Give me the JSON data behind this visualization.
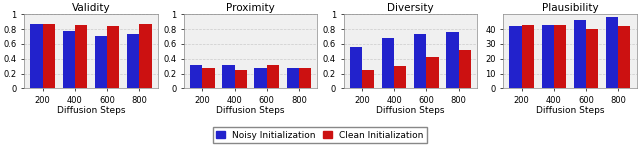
{
  "categories": [
    "200",
    "400",
    "600",
    "800"
  ],
  "subplots": [
    {
      "title": "Validity",
      "ylim": [
        0,
        1
      ],
      "yticks": [
        0,
        0.2,
        0.4,
        0.6,
        0.8,
        1
      ],
      "ytick_labels": [
        "0",
        "0.2",
        "0.4",
        "0.6",
        "0.8",
        "1"
      ],
      "blue": [
        0.87,
        0.78,
        0.71,
        0.73
      ],
      "red": [
        0.87,
        0.86,
        0.84,
        0.87
      ]
    },
    {
      "title": "Proximity",
      "ylim": [
        0,
        1
      ],
      "yticks": [
        0,
        0.2,
        0.4,
        0.6,
        0.8,
        1
      ],
      "ytick_labels": [
        "0",
        "0.2",
        "0.4",
        "0.6",
        "0.8",
        "1"
      ],
      "blue": [
        0.31,
        0.31,
        0.28,
        0.27
      ],
      "red": [
        0.27,
        0.25,
        0.31,
        0.27
      ]
    },
    {
      "title": "Diversity",
      "ylim": [
        0,
        1
      ],
      "yticks": [
        0,
        0.2,
        0.4,
        0.6,
        0.8,
        1
      ],
      "ytick_labels": [
        "0",
        "0.2",
        "0.4",
        "0.6",
        "0.8",
        "1"
      ],
      "blue": [
        0.56,
        0.68,
        0.74,
        0.76
      ],
      "red": [
        0.25,
        0.3,
        0.42,
        0.52
      ]
    },
    {
      "title": "Plausibility",
      "ylim": [
        0,
        50
      ],
      "yticks": [
        0,
        10,
        20,
        30,
        40
      ],
      "ytick_labels": [
        "0",
        "10",
        "20",
        "30",
        "40"
      ],
      "blue": [
        42,
        43,
        46,
        48
      ],
      "red": [
        43,
        43,
        40,
        42
      ]
    }
  ],
  "xlabel": "Diffusion Steps",
  "blue_color": "#2222cc",
  "red_color": "#cc1111",
  "legend_labels": [
    "Noisy Initialization",
    "Clean Initialization"
  ],
  "bar_width": 0.38,
  "grid_color": "#cccccc",
  "background_color": "#f0f0f0"
}
